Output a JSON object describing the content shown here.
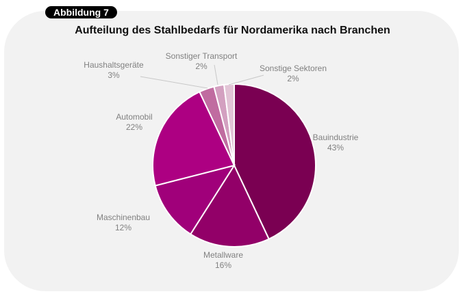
{
  "badge": "Abbildung 7",
  "chart_data": {
    "type": "pie",
    "title": "Aufteilung des Stahlbedarfs für Nordamerika nach Branchen",
    "slices": [
      {
        "label": "Bauindustrie",
        "value": 43,
        "display": "43%",
        "color": "#7a0052"
      },
      {
        "label": "Metallware",
        "value": 16,
        "display": "16%",
        "color": "#920068"
      },
      {
        "label": "Maschinenbau",
        "value": 12,
        "display": "12%",
        "color": "#a0007a"
      },
      {
        "label": "Automobil",
        "value": 22,
        "display": "22%",
        "color": "#ad0082"
      },
      {
        "label": "Haushaltsgeräte",
        "value": 3,
        "display": "3%",
        "color": "#c06ca0"
      },
      {
        "label": "Sonstiger Transport",
        "value": 2,
        "display": "2%",
        "color": "#d3a0c0"
      },
      {
        "label": "Sonstige Sektoren",
        "value": 2,
        "display": "2%",
        "color": "#e2c4d6"
      }
    ]
  }
}
